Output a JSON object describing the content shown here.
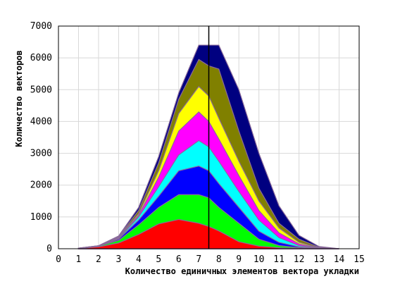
{
  "chart_data": {
    "type": "area",
    "stacked": true,
    "xlabel": "Количество единичных элементов вектора укладки",
    "ylabel": "Количество векторов",
    "xlim": [
      0,
      15
    ],
    "ylim": [
      0,
      7000
    ],
    "xticks": [
      "0",
      "1",
      "2",
      "3",
      "4",
      "5",
      "6",
      "7",
      "8",
      "9",
      "10",
      "11",
      "12",
      "13",
      "14",
      "15"
    ],
    "yticks": [
      "0",
      "1000",
      "2000",
      "3000",
      "4000",
      "5000",
      "6000",
      "7000"
    ],
    "grid": true,
    "legend": "none",
    "vline_x": 7.5,
    "x": [
      1,
      2,
      3,
      4,
      5,
      6,
      7,
      7.5,
      8,
      9,
      10,
      11,
      12,
      13,
      14
    ],
    "series_cumulative": [
      {
        "color": "#ff0000",
        "values": [
          10,
          60,
          180,
          450,
          780,
          920,
          800,
          700,
          560,
          220,
          80,
          30,
          10,
          0,
          0
        ]
      },
      {
        "color": "#00ff00",
        "values": [
          12,
          80,
          260,
          750,
          1300,
          1700,
          1700,
          1600,
          1300,
          800,
          300,
          100,
          30,
          5,
          0
        ]
      },
      {
        "color": "#0000ff",
        "values": [
          14,
          85,
          300,
          900,
          1650,
          2450,
          2600,
          2450,
          2050,
          1300,
          550,
          200,
          60,
          10,
          0
        ]
      },
      {
        "color": "#00ffff",
        "values": [
          15,
          88,
          320,
          1000,
          1950,
          2950,
          3400,
          3200,
          2750,
          1800,
          900,
          350,
          100,
          15,
          0
        ]
      },
      {
        "color": "#ff00ff",
        "values": [
          16,
          90,
          340,
          1050,
          2250,
          3700,
          4300,
          4000,
          3450,
          2300,
          1200,
          500,
          150,
          20,
          0
        ]
      },
      {
        "color": "#ffff00",
        "values": [
          17,
          92,
          360,
          1100,
          2450,
          4250,
          5100,
          4800,
          4100,
          2750,
          1500,
          650,
          200,
          30,
          0
        ]
      },
      {
        "color": "#808000",
        "values": [
          18,
          94,
          380,
          1200,
          2700,
          4700,
          5950,
          5750,
          5650,
          3700,
          1900,
          800,
          300,
          45,
          0
        ]
      },
      {
        "color": "#000080",
        "values": [
          20,
          95,
          400,
          1300,
          2900,
          4900,
          6400,
          6400,
          6400,
          5000,
          3000,
          1350,
          420,
          70,
          0
        ]
      }
    ]
  }
}
